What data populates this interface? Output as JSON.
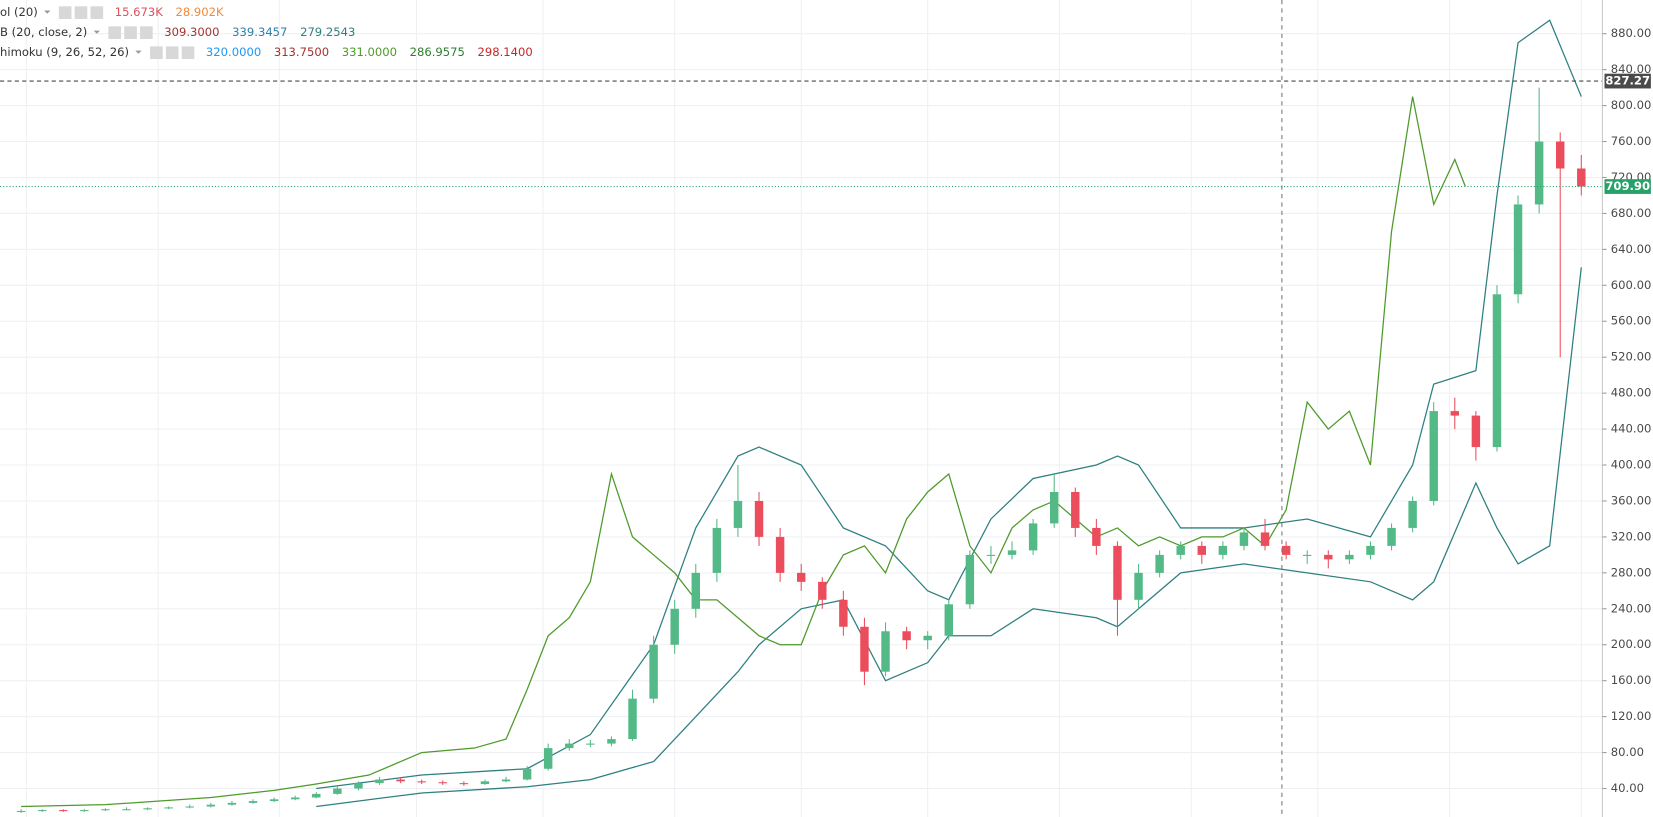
{
  "chart_data": {
    "type": "candlestick",
    "legend": [
      {
        "label": "ol (20)",
        "values": [
          "15.673K",
          "28.902K"
        ],
        "colors": [
          "#e0505c",
          "#f08a3c"
        ]
      },
      {
        "label": "B (20, close, 2)",
        "values": [
          {
            "value": 309.3,
            "label": "309.3000"
          },
          {
            "value": 339.3457,
            "label": "339.3457"
          },
          {
            "value": 279.2543,
            "label": "279.2543"
          }
        ],
        "colors": [
          "#a33232",
          "#2f7fa8",
          "#2f7f80"
        ]
      },
      {
        "label": "himoku (9, 26, 52, 26)",
        "values": [
          {
            "value": 320,
            "label": "320.0000"
          },
          {
            "value": 313.75,
            "label": "313.7500"
          },
          {
            "value": 331,
            "label": "331.0000"
          },
          {
            "value": 286.9575,
            "label": "286.9575"
          },
          {
            "value": 298.14,
            "label": "298.1400"
          }
        ],
        "colors": [
          "#2196f3",
          "#a33232",
          "#4e9a2b",
          "#2e7d32",
          "#c62828"
        ]
      }
    ],
    "up_color": "#53b987",
    "down_color": "#eb4d5c",
    "ylim": [
      8.3,
      917.5
    ],
    "yticks": [
      {
        "value": 40,
        "label": "40.00"
      },
      {
        "value": 80,
        "label": "80.00"
      },
      {
        "value": 120,
        "label": "120.00"
      },
      {
        "value": 160,
        "label": "160.00"
      },
      {
        "value": 200,
        "label": "200.00"
      },
      {
        "value": 240,
        "label": "240.00"
      },
      {
        "value": 280,
        "label": "280.00"
      },
      {
        "value": 320,
        "label": "320.00"
      },
      {
        "value": 360,
        "label": "360.00"
      },
      {
        "value": 400,
        "label": "400.00"
      },
      {
        "value": 440,
        "label": "440.00"
      },
      {
        "value": 480,
        "label": "480.00"
      },
      {
        "value": 520,
        "label": "520.00"
      },
      {
        "value": 560,
        "label": "560.00"
      },
      {
        "value": 600,
        "label": "600.00"
      },
      {
        "value": 640,
        "label": "640.00"
      },
      {
        "value": 680,
        "label": "680.00"
      },
      {
        "value": 720,
        "label": "720.00"
      },
      {
        "value": 760,
        "label": "760.00"
      },
      {
        "value": 800,
        "label": "800.00"
      },
      {
        "value": 840,
        "label": "840.00"
      },
      {
        "value": 880,
        "label": "880.00"
      }
    ],
    "grid": true,
    "price_lines": [
      {
        "value": 827.27,
        "label": "827.27",
        "color": "#4a4a4a",
        "dash": "4 3"
      },
      {
        "value": 709.9,
        "label": "709.90",
        "color": "#26a269",
        "dash": "1 2"
      }
    ],
    "candles": [
      [
        14,
        17,
        13,
        15
      ],
      [
        15,
        17,
        14,
        16
      ],
      [
        16,
        17,
        14,
        15
      ],
      [
        15,
        17,
        14,
        16
      ],
      [
        16,
        18,
        15,
        17
      ],
      [
        17,
        19,
        16,
        17
      ],
      [
        17,
        19,
        16,
        18
      ],
      [
        18,
        20,
        17,
        19
      ],
      [
        19,
        22,
        18,
        20
      ],
      [
        20,
        24,
        19,
        22
      ],
      [
        22,
        26,
        21,
        24
      ],
      [
        24,
        28,
        23,
        26
      ],
      [
        26,
        30,
        25,
        28
      ],
      [
        28,
        32,
        27,
        30
      ],
      [
        30,
        36,
        29,
        34
      ],
      [
        34,
        42,
        33,
        40
      ],
      [
        40,
        48,
        38,
        46
      ],
      [
        46,
        53,
        44,
        50
      ],
      [
        50,
        52,
        46,
        48
      ],
      [
        48,
        50,
        45,
        47
      ],
      [
        47,
        49,
        44,
        46
      ],
      [
        46,
        48,
        43,
        45
      ],
      [
        45,
        50,
        44,
        48
      ],
      [
        48,
        53,
        47,
        50
      ],
      [
        50,
        65,
        49,
        62
      ],
      [
        62,
        90,
        60,
        85
      ],
      [
        85,
        95,
        82,
        90
      ],
      [
        90,
        94,
        86,
        90
      ],
      [
        90,
        98,
        87,
        95
      ],
      [
        95,
        150,
        93,
        140
      ],
      [
        140,
        210,
        135,
        200
      ],
      [
        200,
        250,
        190,
        240
      ],
      [
        240,
        290,
        230,
        280
      ],
      [
        280,
        340,
        270,
        330
      ],
      [
        330,
        400,
        320,
        360
      ],
      [
        360,
        370,
        310,
        320
      ],
      [
        320,
        330,
        270,
        280
      ],
      [
        280,
        290,
        260,
        270
      ],
      [
        270,
        275,
        240,
        250
      ],
      [
        250,
        260,
        210,
        220
      ],
      [
        220,
        230,
        155,
        170
      ],
      [
        170,
        225,
        165,
        215
      ],
      [
        215,
        220,
        195,
        205
      ],
      [
        205,
        215,
        195,
        210
      ],
      [
        210,
        250,
        205,
        245
      ],
      [
        245,
        305,
        240,
        300
      ],
      [
        300,
        310,
        290,
        300
      ],
      [
        300,
        315,
        295,
        305
      ],
      [
        305,
        340,
        300,
        335
      ],
      [
        335,
        390,
        330,
        370
      ],
      [
        370,
        375,
        320,
        330
      ],
      [
        330,
        340,
        300,
        310
      ],
      [
        310,
        315,
        210,
        250
      ],
      [
        250,
        290,
        240,
        280
      ],
      [
        280,
        305,
        275,
        300
      ],
      [
        300,
        315,
        295,
        310
      ],
      [
        310,
        315,
        290,
        300
      ],
      [
        300,
        315,
        295,
        310
      ],
      [
        310,
        330,
        305,
        325
      ],
      [
        325,
        340,
        305,
        310
      ],
      [
        310,
        315,
        295,
        300
      ],
      [
        300,
        305,
        290,
        300
      ],
      [
        300,
        305,
        285,
        295
      ],
      [
        295,
        305,
        290,
        300
      ],
      [
        300,
        315,
        295,
        310
      ],
      [
        310,
        335,
        305,
        330
      ],
      [
        330,
        365,
        325,
        360
      ],
      [
        360,
        470,
        355,
        460
      ],
      [
        460,
        475,
        440,
        455
      ],
      [
        455,
        460,
        405,
        420
      ],
      [
        420,
        600,
        415,
        590
      ],
      [
        590,
        700,
        580,
        690
      ],
      [
        690,
        820,
        680,
        760
      ],
      [
        760,
        770,
        520,
        730
      ],
      [
        730,
        745,
        700,
        710
      ]
    ],
    "lines": [
      {
        "color": "#2f7f80",
        "x": [
          14,
          19,
          24,
          27,
          30,
          32,
          34,
          35,
          37,
          39,
          41,
          43,
          44,
          46,
          48,
          51,
          52,
          53,
          55,
          58,
          61,
          64,
          66,
          67,
          69,
          70,
          71,
          72.5,
          74
        ],
        "values": [
          40,
          55,
          62,
          100,
          200,
          330,
          410,
          420,
          400,
          330,
          310,
          260,
          250,
          340,
          385,
          400,
          410,
          400,
          330,
          330,
          340,
          320,
          400,
          490,
          505,
          700,
          870,
          895,
          810
        ]
      },
      {
        "color": "#2f7f80",
        "x": [
          14,
          19,
          24,
          27,
          30,
          32,
          34,
          35,
          37,
          39,
          41,
          43,
          44,
          46,
          48,
          51,
          52,
          53,
          55,
          58,
          61,
          64,
          66,
          67,
          69,
          70,
          71,
          72.5,
          74
        ],
        "values": [
          20,
          35,
          42,
          50,
          70,
          120,
          170,
          200,
          240,
          250,
          160,
          180,
          210,
          210,
          240,
          230,
          220,
          240,
          280,
          290,
          280,
          270,
          250,
          270,
          380,
          330,
          290,
          310,
          620
        ]
      },
      {
        "color": "#4e9a2b",
        "x": [
          0,
          4,
          9,
          12,
          14,
          16.5,
          19,
          21.5,
          23,
          24,
          25,
          26,
          27,
          28,
          29,
          30,
          31,
          32,
          33,
          34,
          35,
          36,
          37,
          38,
          39,
          40,
          41,
          42,
          43,
          44,
          45,
          46,
          47,
          48,
          49,
          50,
          51,
          52,
          53,
          54,
          55,
          56,
          57,
          58,
          59,
          60,
          61,
          62,
          63,
          64,
          65,
          66,
          67,
          68,
          68.5
        ],
        "values": [
          20,
          22,
          30,
          38,
          45,
          55,
          80,
          85,
          95,
          150,
          210,
          230,
          270,
          390,
          320,
          300,
          280,
          250,
          250,
          230,
          210,
          200,
          200,
          260,
          300,
          310,
          280,
          340,
          370,
          390,
          310,
          280,
          330,
          350,
          360,
          340,
          320,
          330,
          310,
          320,
          310,
          320,
          320,
          330,
          310,
          350,
          470,
          440,
          460,
          400,
          660,
          810,
          690,
          740,
          710
        ]
      }
    ]
  }
}
